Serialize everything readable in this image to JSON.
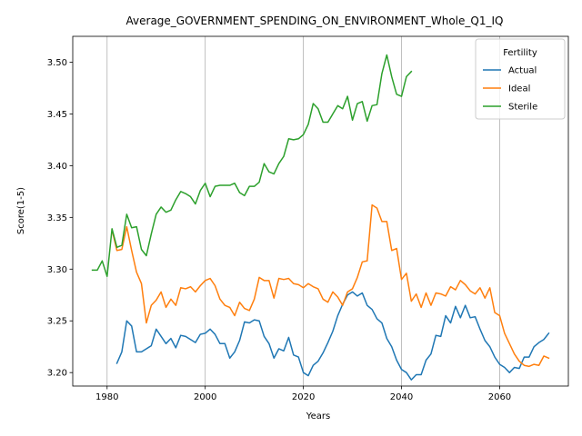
{
  "chart_data": {
    "type": "line",
    "title": "Average_GOVERNMENT_SPENDING_ON_ENVIRONMENT_Whole_Q1_IQ",
    "xlabel": "Years",
    "ylabel": "Score(1-5)",
    "xlim": [
      1973,
      2074
    ],
    "ylim": [
      3.187,
      3.525
    ],
    "x_ticks": [
      1980,
      2000,
      2020,
      2040,
      2060
    ],
    "x_tick_labels": [
      "1980",
      "2000",
      "2020",
      "2040",
      "2060"
    ],
    "y_ticks": [
      3.2,
      3.25,
      3.3,
      3.35,
      3.4,
      3.45,
      3.5
    ],
    "y_tick_labels": [
      "3.20",
      "3.25",
      "3.30",
      "3.35",
      "3.40",
      "3.45",
      "3.50"
    ],
    "grid": "x-only",
    "legend": {
      "title": "Fertility",
      "position": "top-right"
    },
    "series": [
      {
        "name": "Actual",
        "color": "#1f77b4",
        "x": [
          1982,
          1983,
          1984,
          1985,
          1986,
          1987,
          1988,
          1989,
          1990,
          1991,
          1992,
          1993,
          1994,
          1995,
          1996,
          1997,
          1998,
          1999,
          2000,
          2001,
          2002,
          2003,
          2004,
          2005,
          2006,
          2007,
          2008,
          2009,
          2010,
          2011,
          2012,
          2013,
          2014,
          2015,
          2016,
          2017,
          2018,
          2019,
          2020,
          2021,
          2022,
          2023,
          2024,
          2025,
          2026,
          2027,
          2028,
          2029,
          2030,
          2031,
          2032,
          2033,
          2034,
          2035,
          2036,
          2037,
          2038,
          2039,
          2040,
          2041,
          2042,
          2043,
          2044,
          2045,
          2046,
          2047,
          2048,
          2049,
          2050,
          2051,
          2052,
          2053,
          2054,
          2055,
          2056,
          2057,
          2058,
          2059,
          2060,
          2061,
          2062,
          2063,
          2064,
          2065,
          2066,
          2067,
          2068,
          2069,
          2070
        ],
        "values": [
          3.209,
          3.22,
          3.25,
          3.245,
          3.22,
          3.22,
          3.223,
          3.226,
          3.242,
          3.235,
          3.228,
          3.233,
          3.224,
          3.236,
          3.235,
          3.232,
          3.229,
          3.237,
          3.238,
          3.242,
          3.237,
          3.228,
          3.228,
          3.214,
          3.22,
          3.231,
          3.249,
          3.248,
          3.251,
          3.25,
          3.235,
          3.228,
          3.214,
          3.223,
          3.221,
          3.234,
          3.217,
          3.215,
          3.2,
          3.197,
          3.207,
          3.211,
          3.219,
          3.229,
          3.24,
          3.255,
          3.266,
          3.275,
          3.278,
          3.274,
          3.277,
          3.265,
          3.261,
          3.252,
          3.248,
          3.233,
          3.225,
          3.212,
          3.203,
          3.2,
          3.193,
          3.198,
          3.198,
          3.212,
          3.218,
          3.236,
          3.235,
          3.255,
          3.248,
          3.264,
          3.253,
          3.265,
          3.253,
          3.254,
          3.242,
          3.231,
          3.225,
          3.215,
          3.208,
          3.205,
          3.2,
          3.205,
          3.204,
          3.215,
          3.215,
          3.225,
          3.229,
          3.232,
          3.238
        ]
      },
      {
        "name": "Ideal",
        "color": "#ff7f0e",
        "x": [
          1981,
          1982,
          1983,
          1984,
          1985,
          1986,
          1987,
          1988,
          1989,
          1990,
          1991,
          1992,
          1993,
          1994,
          1995,
          1996,
          1997,
          1998,
          1999,
          2000,
          2001,
          2002,
          2003,
          2004,
          2005,
          2006,
          2007,
          2008,
          2009,
          2010,
          2011,
          2012,
          2013,
          2014,
          2015,
          2016,
          2017,
          2018,
          2019,
          2020,
          2021,
          2022,
          2023,
          2024,
          2025,
          2026,
          2027,
          2028,
          2029,
          2030,
          2031,
          2032,
          2033,
          2034,
          2035,
          2036,
          2037,
          2038,
          2039,
          2040,
          2041,
          2042,
          2043,
          2044,
          2045,
          2046,
          2047,
          2048,
          2049,
          2050,
          2051,
          2052,
          2053,
          2054,
          2055,
          2056,
          2057,
          2058,
          2059,
          2060,
          2061,
          2062,
          2063,
          2064,
          2065,
          2066,
          2067,
          2068,
          2069,
          2070
        ],
        "values": [
          3.338,
          3.318,
          3.319,
          3.341,
          3.318,
          3.297,
          3.286,
          3.248,
          3.265,
          3.27,
          3.278,
          3.263,
          3.271,
          3.265,
          3.282,
          3.281,
          3.283,
          3.278,
          3.284,
          3.289,
          3.291,
          3.284,
          3.271,
          3.265,
          3.263,
          3.255,
          3.268,
          3.262,
          3.26,
          3.271,
          3.292,
          3.289,
          3.289,
          3.272,
          3.291,
          3.29,
          3.291,
          3.286,
          3.285,
          3.282,
          3.286,
          3.283,
          3.281,
          3.271,
          3.268,
          3.278,
          3.273,
          3.265,
          3.278,
          3.281,
          3.292,
          3.307,
          3.308,
          3.362,
          3.359,
          3.346,
          3.346,
          3.318,
          3.32,
          3.29,
          3.296,
          3.269,
          3.276,
          3.263,
          3.277,
          3.265,
          3.277,
          3.276,
          3.274,
          3.283,
          3.28,
          3.289,
          3.285,
          3.279,
          3.276,
          3.282,
          3.272,
          3.282,
          3.258,
          3.255,
          3.238,
          3.228,
          3.218,
          3.211,
          3.207,
          3.206,
          3.208,
          3.207,
          3.216,
          3.214
        ]
      },
      {
        "name": "Sterile",
        "color": "#2ca02c",
        "x": [
          1977,
          1978,
          1979,
          1980,
          1981,
          1982,
          1983,
          1984,
          1985,
          1986,
          1987,
          1988,
          1989,
          1990,
          1991,
          1992,
          1993,
          1994,
          1995,
          1996,
          1997,
          1998,
          1999,
          2000,
          2001,
          2002,
          2003,
          2004,
          2005,
          2006,
          2007,
          2008,
          2009,
          2010,
          2011,
          2012,
          2013,
          2014,
          2015,
          2016,
          2017,
          2018,
          2019,
          2020,
          2021,
          2022,
          2023,
          2024,
          2025,
          2026,
          2027,
          2028,
          2029,
          2030,
          2031,
          2032,
          2033,
          2034,
          2035,
          2036,
          2037,
          2038,
          2039,
          2040,
          2041,
          2042
        ],
        "values": [
          3.299,
          3.299,
          3.308,
          3.293,
          3.339,
          3.321,
          3.323,
          3.353,
          3.34,
          3.341,
          3.319,
          3.313,
          3.334,
          3.353,
          3.36,
          3.355,
          3.357,
          3.367,
          3.375,
          3.373,
          3.37,
          3.363,
          3.376,
          3.383,
          3.37,
          3.38,
          3.381,
          3.381,
          3.381,
          3.383,
          3.374,
          3.371,
          3.38,
          3.38,
          3.384,
          3.402,
          3.394,
          3.392,
          3.402,
          3.409,
          3.426,
          3.425,
          3.426,
          3.43,
          3.44,
          3.46,
          3.455,
          3.442,
          3.442,
          3.45,
          3.458,
          3.455,
          3.467,
          3.444,
          3.46,
          3.462,
          3.443,
          3.458,
          3.459,
          3.489,
          3.507,
          3.486,
          3.469,
          3.467,
          3.486,
          3.491
        ]
      }
    ]
  }
}
